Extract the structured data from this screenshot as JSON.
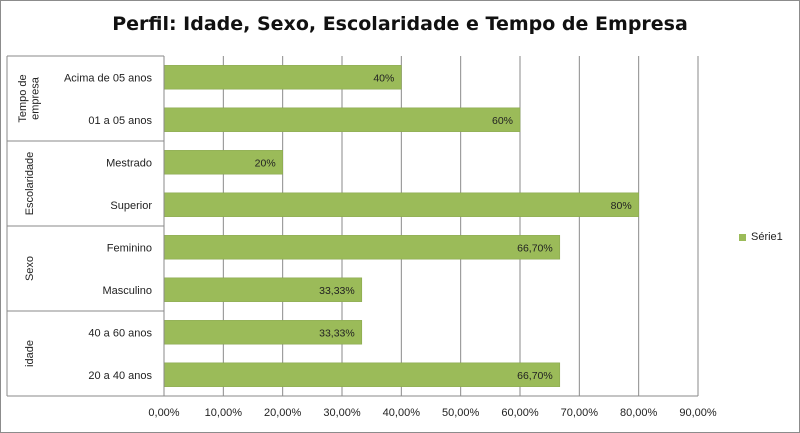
{
  "chart_data": {
    "type": "bar",
    "orientation": "horizontal",
    "title": "Perfil: Idade, Sexo, Escolaridade e Tempo de Empresa",
    "groups": [
      {
        "name": "Tempo de empresa",
        "categories": [
          "Acima de 05 anos",
          "01 a 05 anos"
        ]
      },
      {
        "name": "Escolaridade",
        "categories": [
          "Mestrado",
          "Superior"
        ]
      },
      {
        "name": "Sexo",
        "categories": [
          "Feminino",
          "Masculino"
        ]
      },
      {
        "name": "idade",
        "categories": [
          "40 a 60 anos",
          "20 a 40 anos"
        ]
      }
    ],
    "categories": [
      "Acima de 05 anos",
      "01 a 05 anos",
      "Mestrado",
      "Superior",
      "Feminino",
      "Masculino",
      "40 a 60 anos",
      "20 a 40 anos"
    ],
    "series": [
      {
        "name": "Série1",
        "values": [
          40,
          60,
          20,
          80,
          66.7,
          33.33,
          33.33,
          66.7
        ],
        "data_labels": [
          "40%",
          "60%",
          "20%",
          "80%",
          "66,70%",
          "33,33%",
          "33,33%",
          "66,70%"
        ]
      }
    ],
    "xlim": [
      0,
      90
    ],
    "xticks": [
      "0,00%",
      "10,00%",
      "20,00%",
      "30,00%",
      "40,00%",
      "50,00%",
      "60,00%",
      "70,00%",
      "80,00%",
      "90,00%"
    ],
    "grid": true,
    "legend_position": "right",
    "bar_color": "#9bbb59",
    "grid_color": "#8a8a8a"
  }
}
